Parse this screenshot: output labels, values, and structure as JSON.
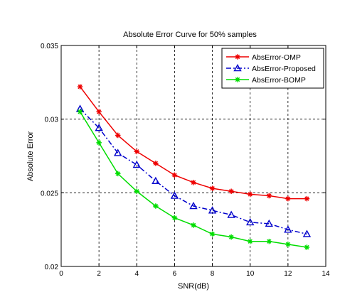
{
  "chart_data": {
    "type": "line",
    "title": "Absolute Error Curve for 50% samples",
    "xlabel": "SNR(dB)",
    "ylabel": "Absolute Error",
    "xlim": [
      0,
      14
    ],
    "ylim": [
      0.02,
      0.035
    ],
    "xticks": [
      0,
      2,
      4,
      6,
      8,
      10,
      12,
      14
    ],
    "xtick_labels": [
      "0",
      "2",
      "4",
      "6",
      "8",
      "10",
      "12",
      "14"
    ],
    "yticks": [
      0.02,
      0.025,
      0.03,
      0.035
    ],
    "ytick_labels": [
      "0.02",
      "0.025",
      "0.03",
      "0.035"
    ],
    "grid": true,
    "legend_position": "top-right",
    "x": [
      1,
      2,
      3,
      4,
      5,
      6,
      7,
      8,
      9,
      10,
      11,
      12,
      13
    ],
    "series": [
      {
        "name": "AbsError-OMP",
        "color": "#ee0000",
        "marker": "star",
        "line_style": "solid",
        "values": [
          0.0322,
          0.0305,
          0.0289,
          0.0278,
          0.027,
          0.0262,
          0.0257,
          0.0253,
          0.0251,
          0.0249,
          0.0248,
          0.0246,
          0.0246
        ]
      },
      {
        "name": "AbsError-Proposed",
        "color": "#0000cc",
        "marker": "triangle",
        "line_style": "dash-dot",
        "values": [
          0.0307,
          0.0294,
          0.0277,
          0.0269,
          0.0258,
          0.0248,
          0.0241,
          0.0238,
          0.0235,
          0.023,
          0.0229,
          0.0225,
          0.0222
        ]
      },
      {
        "name": "AbsError-BOMP",
        "color": "#00dd00",
        "marker": "star",
        "line_style": "solid",
        "values": [
          0.0305,
          0.0284,
          0.0263,
          0.0251,
          0.0241,
          0.0233,
          0.0228,
          0.0222,
          0.022,
          0.0217,
          0.0217,
          0.0215,
          0.0213
        ]
      }
    ]
  }
}
